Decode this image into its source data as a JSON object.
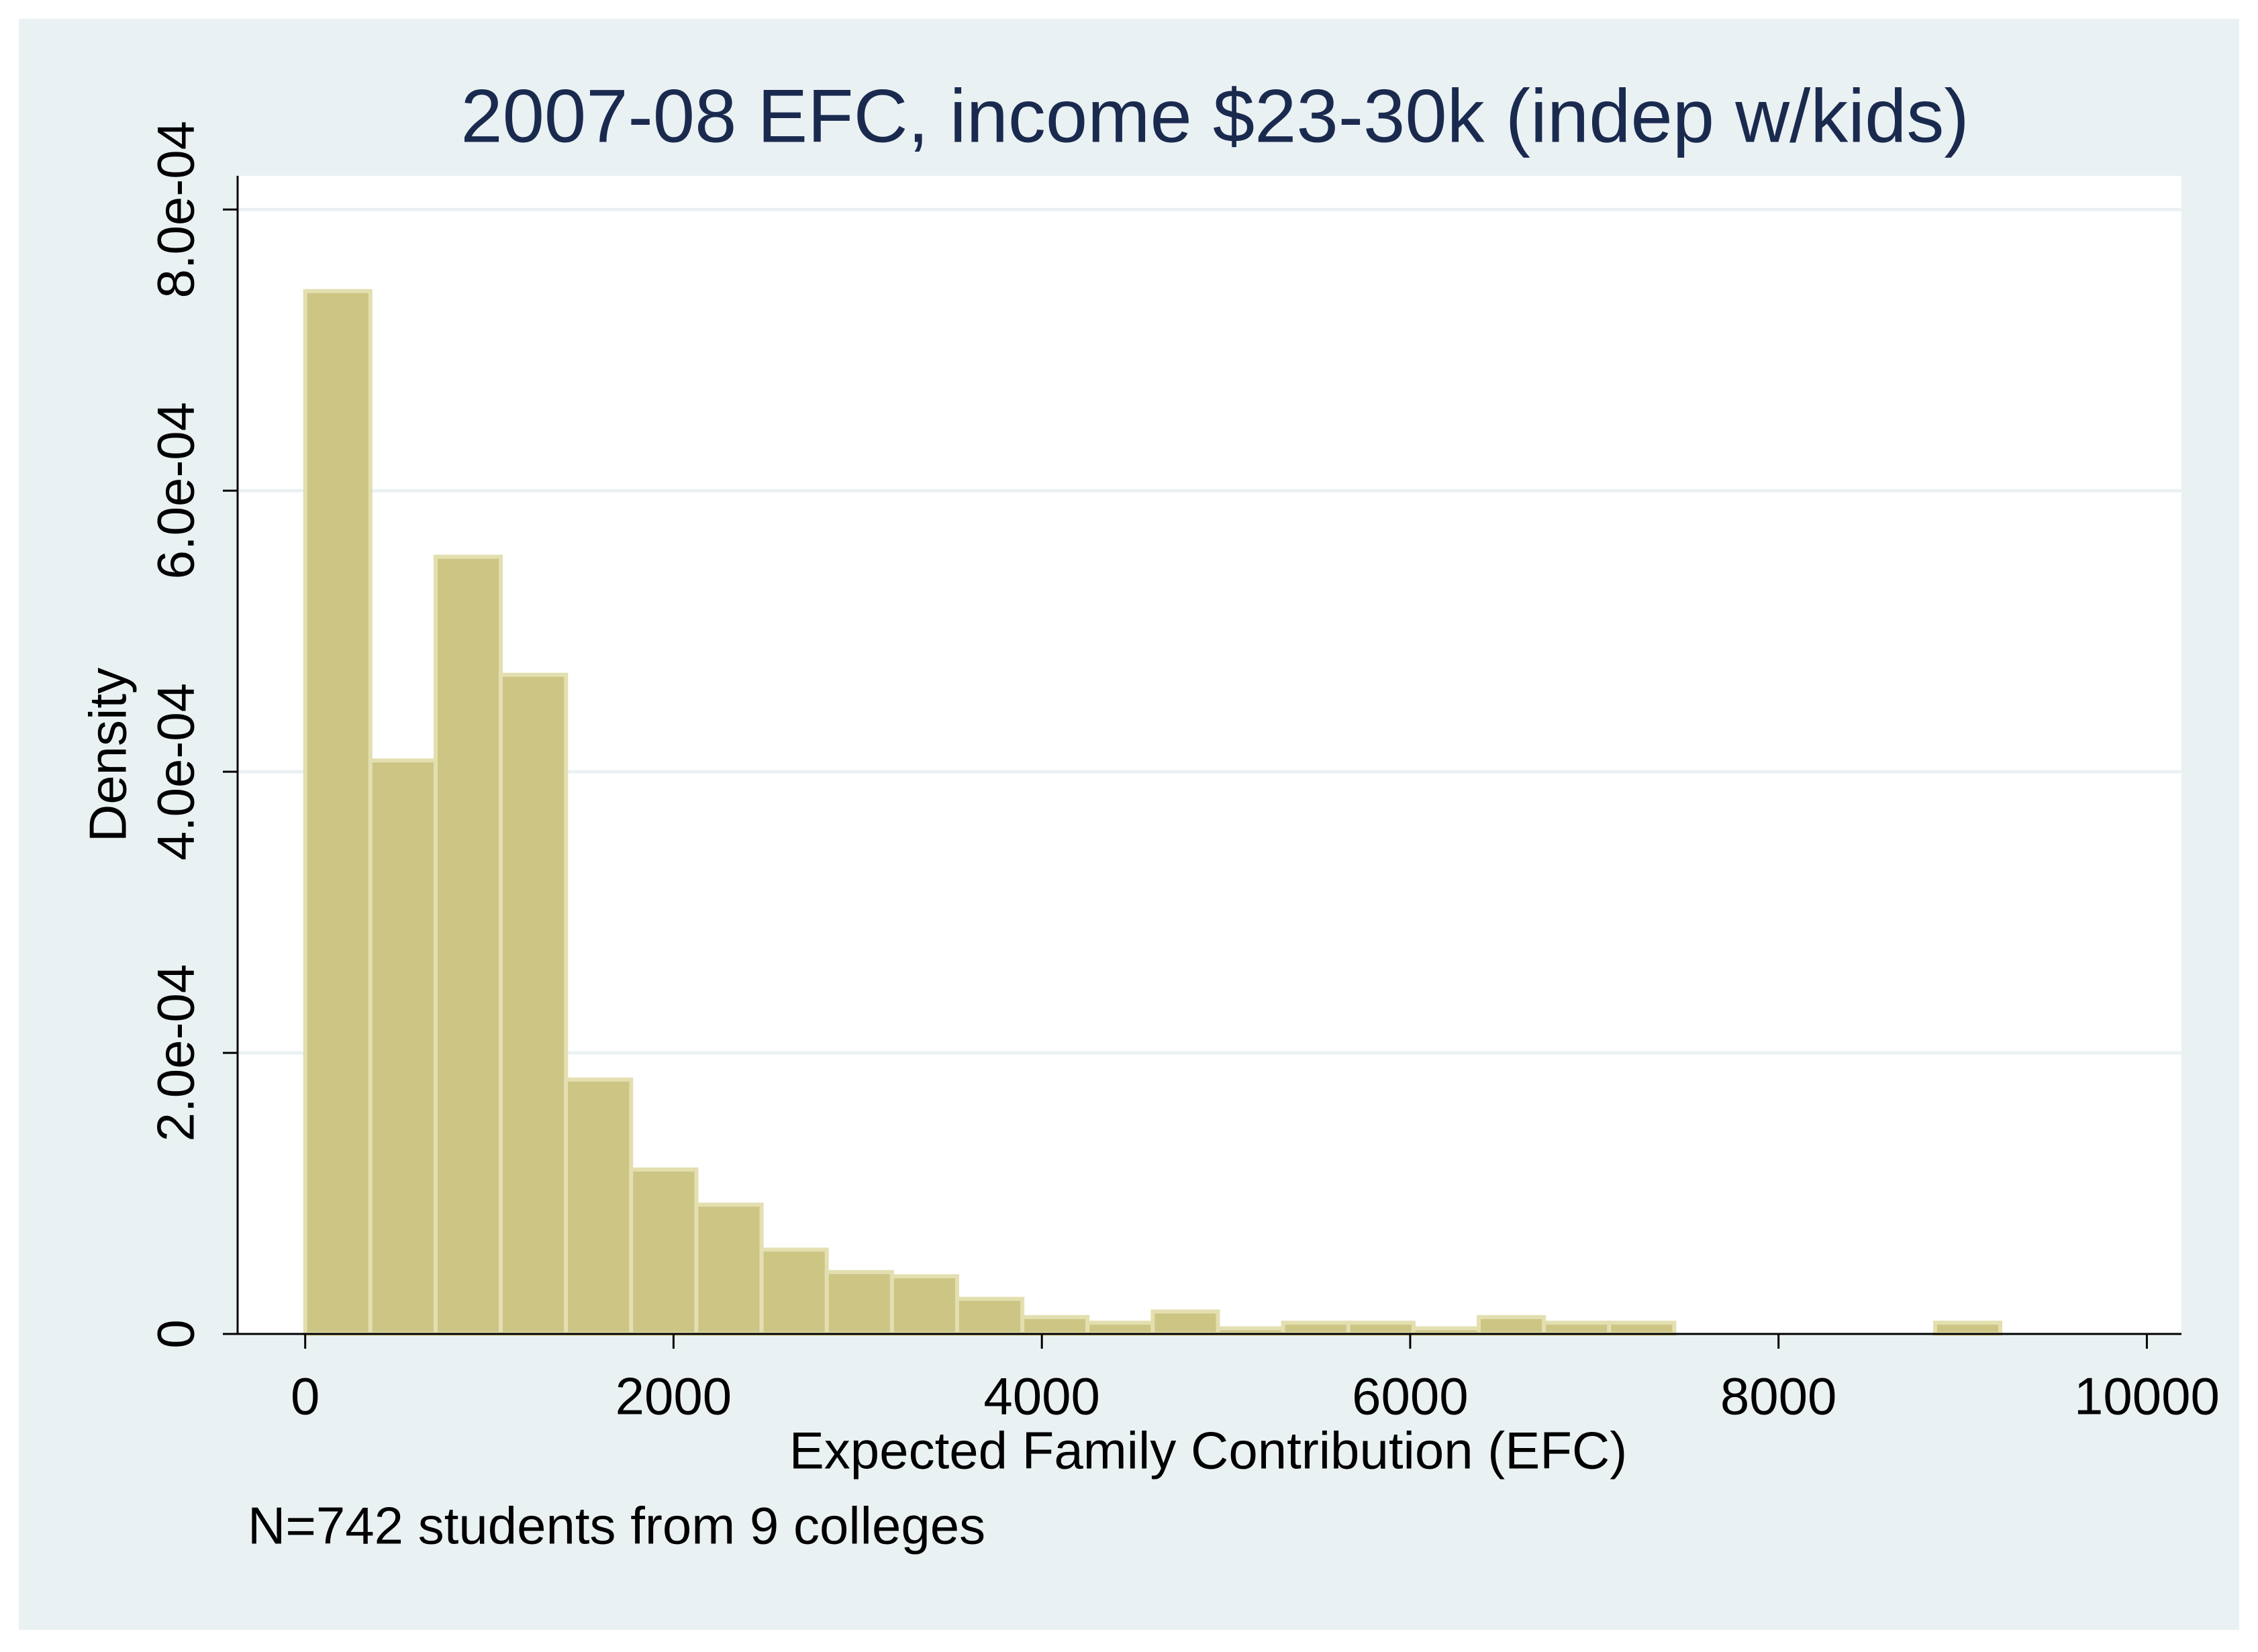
{
  "chart_data": {
    "type": "histogram",
    "title": "2007-08 EFC, income $23-30k (indep w/kids)",
    "x_label": "Expected Family Contribution (EFC)",
    "y_label": "Density",
    "note": "N=742 students from 9 colleges",
    "bins": [
      0,
      354,
      708,
      1062,
      1416,
      1770,
      2124,
      2478,
      2832,
      3186,
      3540,
      3894,
      4248,
      4602,
      4956,
      5310,
      5664,
      6018,
      6372,
      6726,
      7080,
      7434,
      7788,
      8142,
      8496,
      8850,
      9204
    ],
    "values": [
      0.000742,
      0.000408,
      0.000553,
      0.000469,
      0.000181,
      0.000117,
      9.2e-05,
      6e-05,
      4.4e-05,
      4.1e-05,
      2.5e-05,
      1.2e-05,
      8e-06,
      1.6e-05,
      4e-06,
      8e-06,
      8e-06,
      4e-06,
      1.2e-05,
      8e-06,
      8e-06,
      0,
      0,
      0,
      0,
      8e-06
    ],
    "color": "#cdc584",
    "xlim": [
      -367,
      10188
    ],
    "xticks": [
      0,
      2000,
      4000,
      6000,
      8000,
      10000
    ],
    "ylim": [
      0,
      0.000824
    ],
    "yticks": [
      0,
      {
        "value": 0.0002,
        "label": "2.0e-04"
      },
      {
        "value": 0.0004,
        "label": "4.0e-04"
      },
      {
        "value": 0.0006,
        "label": "6.0e-04"
      },
      {
        "value": 0.0008,
        "label": "8.0e-04"
      }
    ],
    "grid": true
  }
}
